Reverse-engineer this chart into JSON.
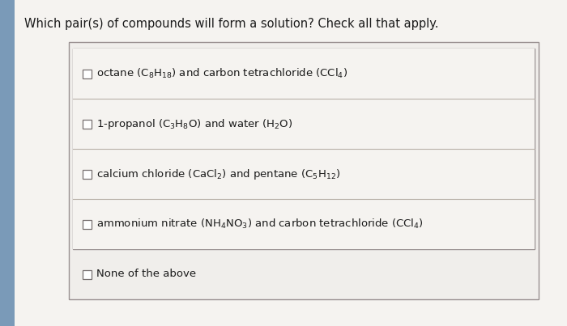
{
  "title": "Which pair(s) of compounds will form a solution? Check all that apply.",
  "title_fontsize": 10.5,
  "page_bg": "#e8eef4",
  "left_strip_color": "#7a9ab8",
  "content_bg": "#f0f0ee",
  "inner_box_bg": "#eeecea",
  "row_bg": "#f2f0ed",
  "options": [
    "octane $\\left(\\mathrm{C_8H_{18}}\\right)$ and carbon tetrachloride $\\left(\\mathrm{CCl_4}\\right)$",
    "1-propanol $\\left(\\mathrm{C_3H_8O}\\right)$ and water $\\left(\\mathrm{H_2O}\\right)$",
    "calcium chloride $\\left(\\mathrm{CaCl_2}\\right)$ and pentane $\\left(\\mathrm{C_5H_{12}}\\right)$",
    "ammonium nitrate $\\left(\\mathrm{NH_4NO_3}\\right)$ and carbon tetrachloride $\\left(\\mathrm{CCl_4}\\right)$"
  ],
  "last_option": "None of the above",
  "text_color": "#1a1a1a",
  "line_color": "#b8b0a8",
  "border_color": "#999090",
  "cb_edge_color": "#777070",
  "text_fontsize": 9.5
}
